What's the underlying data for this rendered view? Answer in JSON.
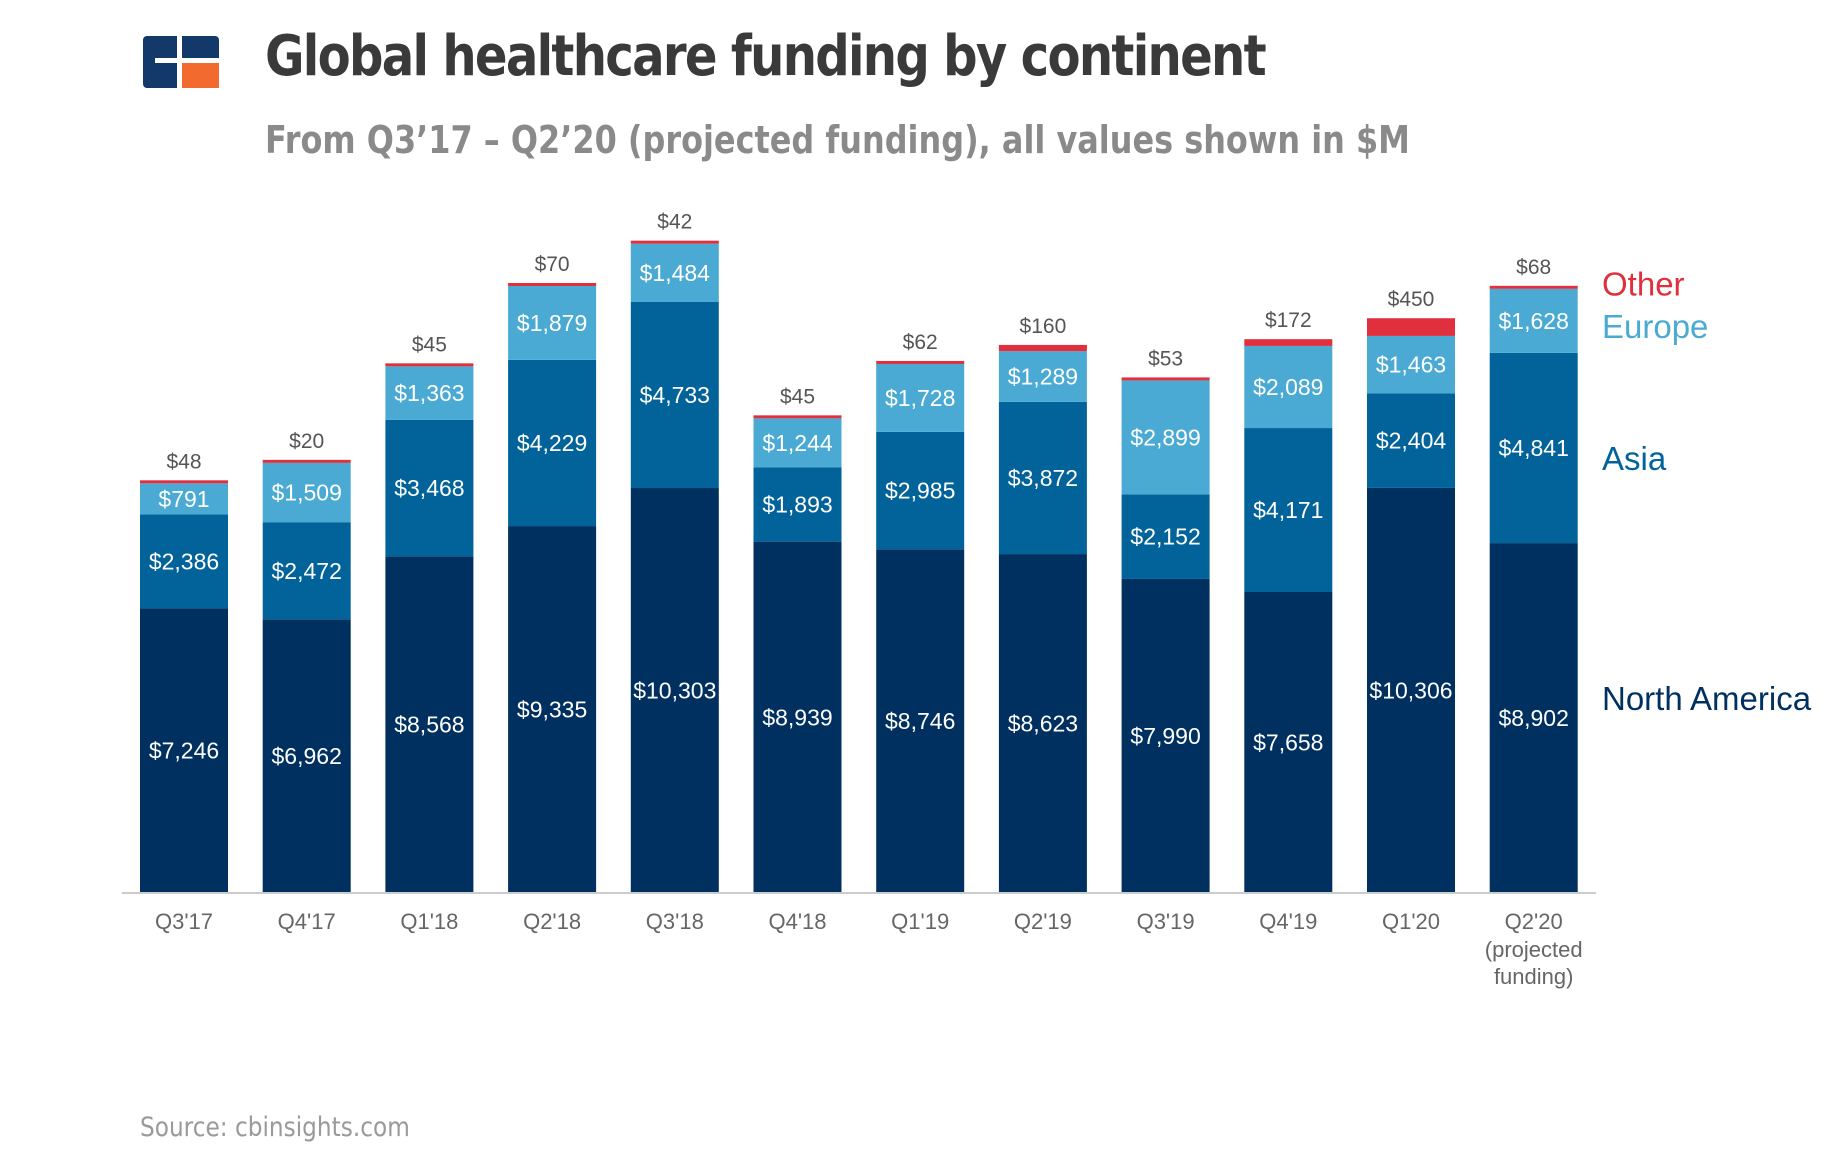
{
  "header": {
    "title": "Global healthcare funding by continent",
    "subtitle": "From Q3’17 – Q2’20 (projected funding), all values shown in $M"
  },
  "footer": {
    "source": "Source: cbinsights.com"
  },
  "colors": {
    "north_america": "#00305f",
    "asia": "#02629a",
    "europe": "#4aaad4",
    "other": "#e0303e",
    "logo_blue": "#13386a",
    "logo_orange": "#f26a2e"
  },
  "chart_data": {
    "type": "bar",
    "stacked": true,
    "categories": [
      "Q3'17",
      "Q4'17",
      "Q1'18",
      "Q2'18",
      "Q3'18",
      "Q4'18",
      "Q1'19",
      "Q2'19",
      "Q3'19",
      "Q4'19",
      "Q1'20",
      "Q2'20"
    ],
    "category_notes": [
      "",
      "",
      "",
      "",
      "",
      "",
      "",
      "",
      "",
      "",
      "",
      "(projected funding)"
    ],
    "series": [
      {
        "name": "North America",
        "values": [
          7246,
          6962,
          8568,
          9335,
          10303,
          8939,
          8746,
          8623,
          7990,
          7658,
          10306,
          8902
        ],
        "labels": [
          "$7,246",
          "$6,962",
          "$8,568",
          "$9,335",
          "$10,303",
          "$8,939",
          "$8,746",
          "$8,623",
          "$7,990",
          "$7,658",
          "$10,306",
          "$8,902"
        ]
      },
      {
        "name": "Asia",
        "values": [
          2386,
          2472,
          3468,
          4229,
          4733,
          1893,
          2985,
          3872,
          2152,
          4171,
          2404,
          4841
        ],
        "labels": [
          "$2,386",
          "$2,472",
          "$3,468",
          "$4,229",
          "$4,733",
          "$1,893",
          "$2,985",
          "$3,872",
          "$2,152",
          "$4,171",
          "$2,404",
          "$4,841"
        ]
      },
      {
        "name": "Europe",
        "values": [
          791,
          1509,
          1363,
          1879,
          1484,
          1244,
          1728,
          1289,
          2899,
          2089,
          1463,
          1628
        ],
        "labels": [
          "$791",
          "$1,509",
          "$1,363",
          "$1,879",
          "$1,484",
          "$1,244",
          "$1,728",
          "$1,289",
          "$2,899",
          "$2,089",
          "$1,463",
          "$1,628"
        ]
      },
      {
        "name": "Other",
        "values": [
          48,
          20,
          45,
          70,
          42,
          45,
          62,
          160,
          53,
          172,
          450,
          68
        ],
        "labels": [
          "$48",
          "$20",
          "$45",
          "$70",
          "$42",
          "$45",
          "$62",
          "$160",
          "$53",
          "$172",
          "$450",
          "$68"
        ]
      }
    ],
    "ylim": [
      0,
      16700
    ],
    "grid": false,
    "legend": "right, aligned with stacks",
    "xlabel": "",
    "ylabel": ""
  }
}
